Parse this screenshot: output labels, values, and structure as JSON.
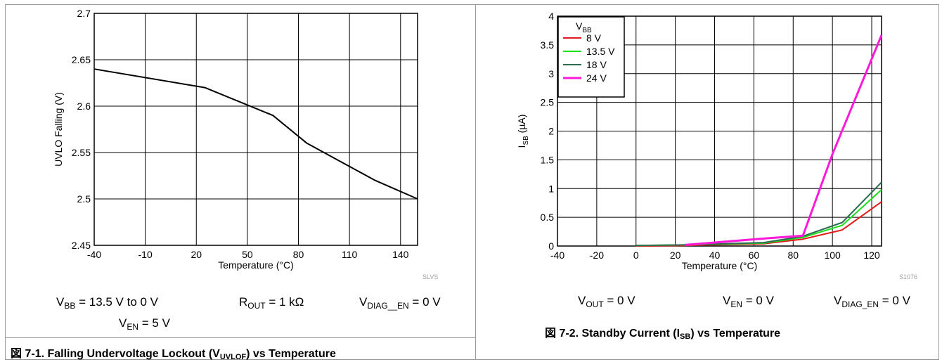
{
  "figures": {
    "left": {
      "conditions": {
        "vbb": {
          "sym": "V",
          "sub": "BB",
          "rest": " = 13.5 V to 0 V"
        },
        "rout": {
          "sym": "R",
          "sub": "OUT",
          "rest": " = 1 kΩ"
        },
        "vdiag": {
          "sym": "V",
          "sub": "DIAG__EN",
          "rest": " = 0 V"
        },
        "ven": {
          "sym": "V",
          "sub": "EN",
          "rest": " = 5 V"
        }
      },
      "caption": {
        "prefix": "図 7-1. Falling Undervoltage Lockout (V",
        "sub": "UVLOF",
        "suffix": ") vs Temperature"
      },
      "watermark": "SLVS"
    },
    "right": {
      "conditions": {
        "vout": {
          "sym": "V",
          "sub": "OUT",
          "rest": " = 0 V"
        },
        "ven": {
          "sym": "V",
          "sub": "EN",
          "rest": " = 0 V"
        },
        "vdiag": {
          "sym": "V",
          "sub": "DIAG_EN",
          "rest": " = 0 V"
        }
      },
      "caption": {
        "prefix": "図 7-2. Standby Current (I",
        "sub": "SB",
        "suffix": ") vs Temperature"
      },
      "watermark": "S1076"
    }
  },
  "chart_data": [
    {
      "type": "line",
      "xlabel": "Temperature (°C)",
      "ylabel": "UVLO Falling (V)",
      "xlim": [
        -40,
        150
      ],
      "ylim": [
        2.45,
        2.7
      ],
      "xticks": [
        -40,
        -10,
        20,
        50,
        80,
        110,
        140
      ],
      "xtick_labels": [
        "-40",
        "-10",
        "20",
        "50",
        "80",
        "110",
        "140"
      ],
      "yticks": [
        2.45,
        2.5,
        2.55,
        2.6,
        2.65,
        2.7
      ],
      "ytick_labels": [
        "2.45",
        "2.5",
        "2.55",
        "2.6",
        "2.65",
        "2.7"
      ],
      "grid": true,
      "series": [
        {
          "color": "#000000",
          "x": [
            -40,
            25,
            65,
            85,
            105,
            125,
            150
          ],
          "y": [
            2.64,
            2.62,
            2.59,
            2.56,
            2.54,
            2.52,
            2.5
          ]
        }
      ]
    },
    {
      "type": "line",
      "xlabel": "Temperature (°C)",
      "ylabel": {
        "main": "I",
        "sub": "SB",
        "rest": " (µA)"
      },
      "xlim": [
        -40,
        125
      ],
      "ylim": [
        0,
        4
      ],
      "xticks": [
        -40,
        -20,
        0,
        20,
        40,
        60,
        80,
        100,
        120
      ],
      "xtick_labels": [
        "-40",
        "-20",
        "0",
        "20",
        "40",
        "60",
        "80",
        "100",
        "120"
      ],
      "yticks": [
        0,
        0.5,
        1,
        1.5,
        2,
        2.5,
        3,
        3.5,
        4
      ],
      "ytick_labels": [
        "0",
        "0.5",
        "1",
        "1.5",
        "2",
        "2.5",
        "3",
        "3.5",
        "4"
      ],
      "grid": true,
      "legend": {
        "title": {
          "main": "V",
          "sub": "BB"
        },
        "position": "top-left"
      },
      "series": [
        {
          "name": "8 V",
          "color": "#e31a1c",
          "x": [
            0,
            25,
            65,
            85,
            105,
            125
          ],
          "y": [
            0.0,
            0.01,
            0.04,
            0.12,
            0.28,
            0.77
          ]
        },
        {
          "name": "13.5 V",
          "color": "#1ae01a",
          "x": [
            0,
            25,
            65,
            85,
            105,
            125
          ],
          "y": [
            0.01,
            0.02,
            0.05,
            0.15,
            0.36,
            0.98
          ]
        },
        {
          "name": "18 V",
          "color": "#2e6b50",
          "x": [
            0,
            25,
            65,
            85,
            105,
            125
          ],
          "y": [
            0.01,
            0.02,
            0.06,
            0.17,
            0.41,
            1.11
          ]
        },
        {
          "name": "24 V",
          "color": "#ff1ad9",
          "x": [
            25,
            65,
            85,
            100,
            125
          ],
          "y": [
            0.02,
            0.13,
            0.18,
            1.6,
            3.67
          ]
        }
      ]
    }
  ]
}
